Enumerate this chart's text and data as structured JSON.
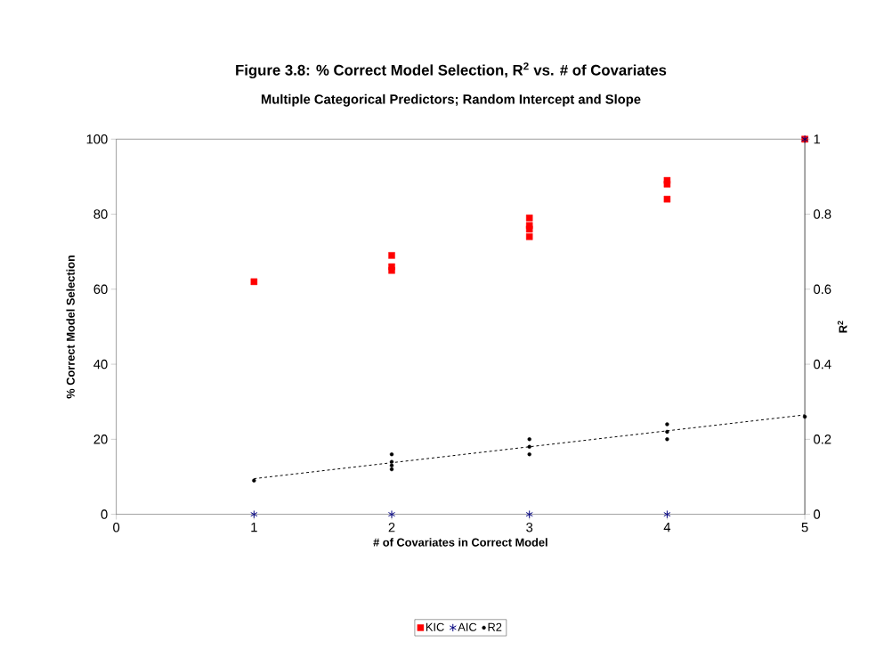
{
  "chart_data": {
    "type": "scatter",
    "title": "Figure 3.8: % Correct Model Selection, R$^{2}$ vs. # of Covariates",
    "subtitle": "Multiple Categorical Predictors; Random Intercept and Slope",
    "xlabel": "# of Covariates in Correct Model",
    "ylabel": "% Correct Model Selection",
    "y2label": "R$^{2}$",
    "xlim": [
      0,
      5
    ],
    "xticks": [
      0,
      1,
      2,
      3,
      4,
      5
    ],
    "ylim": [
      0,
      100
    ],
    "yticks": [
      0,
      20,
      40,
      60,
      80,
      100
    ],
    "y2lim": [
      0,
      1
    ],
    "y2ticks": [
      0,
      0.2,
      0.4,
      0.6,
      0.8,
      1
    ],
    "legend": "bottom",
    "series": [
      {
        "name": "KIC",
        "color": "#ff0000",
        "marker": "square",
        "x": [
          1,
          2,
          2,
          2,
          3,
          3,
          3,
          3,
          4,
          4,
          4,
          5
        ],
        "values": [
          62,
          69,
          66,
          65,
          79,
          77,
          76,
          74,
          89,
          88,
          84,
          100
        ]
      },
      {
        "name": "AIC",
        "color": "#000080",
        "marker": "cross",
        "x": [
          1,
          2,
          3,
          4,
          5
        ],
        "values": [
          0,
          0,
          0,
          0,
          100
        ]
      },
      {
        "name": "R2",
        "color": "#000000",
        "marker": "circle",
        "axis": "y2",
        "x": [
          1,
          2,
          2,
          2,
          2,
          3,
          3,
          3,
          4,
          4,
          4,
          5
        ],
        "values": [
          0.09,
          0.16,
          0.14,
          0.13,
          0.12,
          0.2,
          0.18,
          0.16,
          0.24,
          0.22,
          0.2,
          0.26
        ]
      },
      {
        "type": "line",
        "color": "#000000",
        "line_style": "dashed",
        "marker": "none",
        "axis": "y2",
        "x": [
          1,
          5
        ],
        "values": [
          0.095,
          0.265
        ]
      }
    ]
  }
}
